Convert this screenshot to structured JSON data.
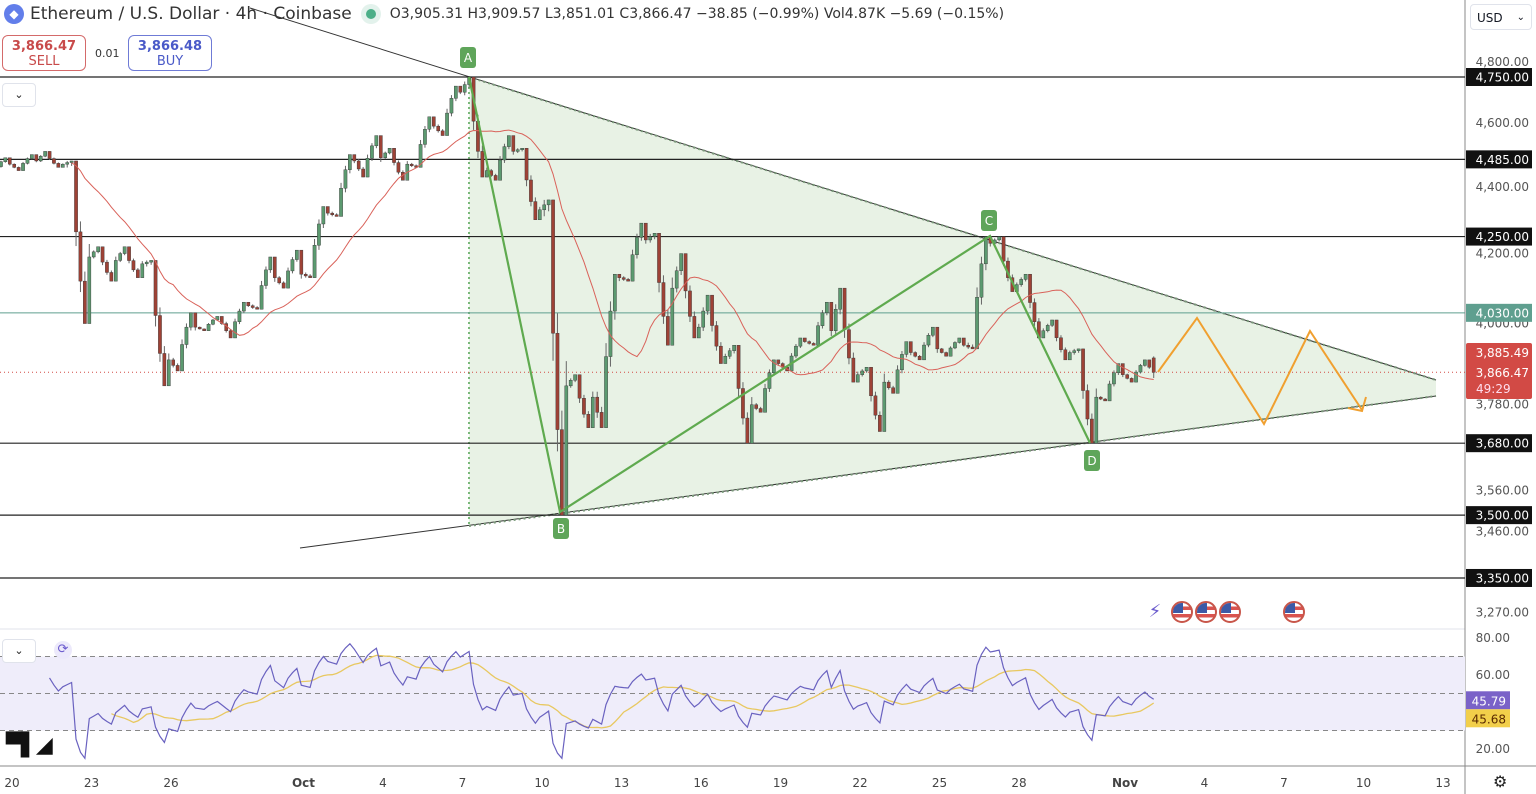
{
  "header": {
    "symbol": "Ethereum / U.S. Dollar · 4h · Coinbase",
    "ohlc": "O3,905.31 H3,909.57 L3,851.01 C3,866.47 −38.85 (−0.99%) Vol4.87K −5.69 (−0.15%)"
  },
  "trade": {
    "sell_price": "3,866.47",
    "sell_label": "SELL",
    "spread": "0.01",
    "buy_price": "3,866.48",
    "buy_label": "BUY"
  },
  "currency": "USD",
  "icons": {
    "collapse": "chevron-down-icon",
    "refresh": "refresh-icon",
    "settings": "gear-icon",
    "logo": "tradingview-logo",
    "events": [
      "ai-bolt-icon",
      "us-flag-icon",
      "us-flag-icon",
      "us-flag-icon",
      "us-flag-icon"
    ]
  },
  "colors": {
    "up": "#5c9a70",
    "down": "#9e4236",
    "ma": "#d9625a",
    "triangle_fill": "#e5f1e2",
    "pattern": "#5faa4f",
    "projection": "#f0a030",
    "level_4030": "#5f9f8f",
    "rsi": "#6a62c0",
    "rsi_ma": "#e8c860",
    "rsi_band": "#efedfa",
    "price_label": "#d24a45"
  },
  "chart_data": {
    "type": "candlestick",
    "scale": "log",
    "timeframe": "4h",
    "ylim": [
      3240,
      4830
    ],
    "ohlc_daily": [
      [
        4460,
        4490,
        4440,
        4470
      ],
      [
        4470,
        4500,
        4450,
        4480
      ],
      [
        4480,
        4510,
        4460,
        4470
      ],
      [
        4470,
        4480,
        4000,
        4190
      ],
      [
        4190,
        4220,
        4120,
        4180
      ],
      [
        4180,
        4220,
        4130,
        4170
      ],
      [
        4170,
        4180,
        3830,
        3900
      ],
      [
        3900,
        4030,
        3870,
        3990
      ],
      [
        3990,
        4020,
        3980,
        4000
      ],
      [
        4000,
        4060,
        3960,
        4050
      ],
      [
        4050,
        4190,
        4040,
        4130
      ],
      [
        4130,
        4210,
        4100,
        4140
      ],
      [
        4140,
        4340,
        4130,
        4320
      ],
      [
        4320,
        4500,
        4310,
        4480
      ],
      [
        4480,
        4560,
        4430,
        4490
      ],
      [
        4490,
        4520,
        4420,
        4470
      ],
      [
        4470,
        4620,
        4460,
        4590
      ],
      [
        4590,
        4720,
        4560,
        4700
      ],
      [
        4700,
        4750,
        4430,
        4450
      ],
      [
        4450,
        4560,
        4420,
        4510
      ],
      [
        4510,
        4520,
        4300,
        4330
      ],
      [
        4330,
        4360,
        3500,
        3830
      ],
      [
        3830,
        3860,
        3720,
        3800
      ],
      [
        3800,
        4140,
        3720,
        4130
      ],
      [
        4130,
        4290,
        4120,
        4240
      ],
      [
        4240,
        4260,
        3940,
        4100
      ],
      [
        4100,
        4200,
        3960,
        3990
      ],
      [
        3990,
        4080,
        3890,
        3910
      ],
      [
        3910,
        3940,
        3680,
        3780
      ],
      [
        3780,
        3900,
        3760,
        3890
      ],
      [
        3890,
        3960,
        3870,
        3950
      ],
      [
        3950,
        4060,
        3940,
        3980
      ],
      [
        3980,
        4100,
        3840,
        3860
      ],
      [
        3860,
        3880,
        3710,
        3840
      ],
      [
        3840,
        3950,
        3810,
        3920
      ],
      [
        3920,
        3990,
        3900,
        3930
      ],
      [
        3930,
        3960,
        3910,
        3940
      ],
      [
        3940,
        4250,
        3930,
        4230
      ],
      [
        4230,
        4250,
        4090,
        4110
      ],
      [
        4110,
        4140,
        3960,
        3980
      ],
      [
        3980,
        4010,
        3900,
        3920
      ],
      [
        3920,
        3930,
        3680,
        3800
      ],
      [
        3800,
        3890,
        3790,
        3860
      ],
      [
        3860,
        3900,
        3840,
        3880
      ]
    ],
    "last_candle": [
      3905.31,
      3909.57,
      3851.01,
      3866.47
    ],
    "price_ticks": [
      "4,800.00",
      "4,600.00",
      "4,400.00",
      "4,200.00",
      "4,000.00",
      "3,780.00",
      "3,560.00",
      "3,460.00",
      "3,270.00"
    ],
    "price_tick_values": [
      4800,
      4600,
      4400,
      4200,
      4000,
      3780,
      3560,
      3460,
      3270
    ],
    "levels": [
      {
        "value": 4750,
        "label": "4,750.00"
      },
      {
        "value": 4485,
        "label": "4,485.00"
      },
      {
        "value": 4250,
        "label": "4,250.00"
      },
      {
        "value": 4030,
        "label": "4,030.00",
        "highlight": true
      },
      {
        "value": 3680,
        "label": "3,680.00"
      },
      {
        "value": 3500,
        "label": "3,500.00"
      },
      {
        "value": 3350,
        "label": "3,350.00"
      }
    ],
    "ma_value_label": "3,885.49",
    "current_price_label": "3,866.47",
    "countdown": "49:29",
    "pattern_points": [
      {
        "label": "A",
        "price": 4750
      },
      {
        "label": "B",
        "price": 3500
      },
      {
        "label": "C",
        "price": 4250
      },
      {
        "label": "D",
        "price": 3680
      }
    ],
    "x_ticks": [
      "20",
      "23",
      "26",
      "Oct",
      "4",
      "7",
      "10",
      "13",
      "16",
      "19",
      "22",
      "25",
      "28",
      "Nov",
      "4",
      "7",
      "10",
      "13"
    ],
    "rsi": {
      "value": "45.79",
      "ma_value": "45.68",
      "ticks": [
        "80.00",
        "60.00",
        "20.00"
      ],
      "tick_values": [
        80,
        60,
        20
      ],
      "bands": [
        70,
        50,
        30
      ],
      "period": 14
    }
  }
}
